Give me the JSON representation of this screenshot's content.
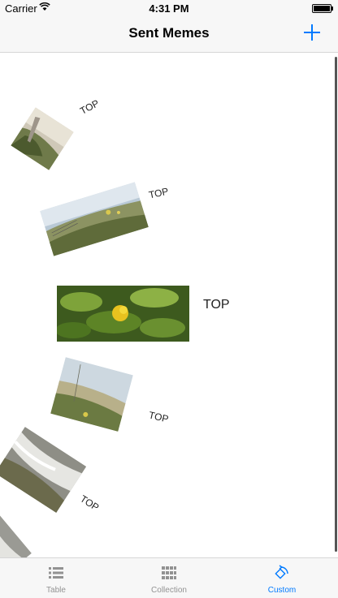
{
  "status": {
    "carrier": "Carrier",
    "time": "4:31 PM"
  },
  "nav": {
    "title": "Sent Memes"
  },
  "memes": [
    {
      "top_text": "TOP"
    },
    {
      "top_text": "TOP"
    },
    {
      "top_text": "TOP"
    },
    {
      "top_text": "TOP"
    },
    {
      "top_text": "TOP"
    },
    {
      "top_text": ""
    }
  ],
  "tabs": [
    {
      "label": "Table",
      "icon": "table-icon"
    },
    {
      "label": "Collection",
      "icon": "grid-icon"
    },
    {
      "label": "Custom",
      "icon": "custom-icon"
    }
  ],
  "colors": {
    "accent": "#007aff",
    "inactive": "#929292",
    "bar": "#f7f7f7"
  }
}
